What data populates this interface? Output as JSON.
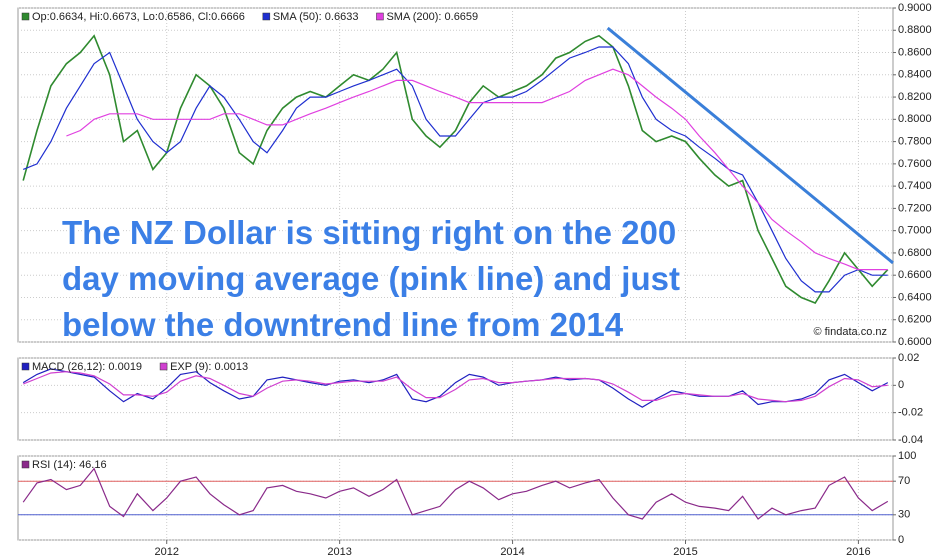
{
  "chart_data": [
    {
      "type": "line",
      "x": [
        2011.17,
        2011.25,
        2011.33,
        2011.42,
        2011.5,
        2011.58,
        2011.67,
        2011.75,
        2011.83,
        2011.92,
        2012.0,
        2012.08,
        2012.17,
        2012.25,
        2012.33,
        2012.42,
        2012.5,
        2012.58,
        2012.67,
        2012.75,
        2012.83,
        2012.92,
        2013.0,
        2013.08,
        2013.17,
        2013.25,
        2013.33,
        2013.42,
        2013.5,
        2013.58,
        2013.67,
        2013.75,
        2013.83,
        2013.92,
        2014.0,
        2014.08,
        2014.17,
        2014.25,
        2014.33,
        2014.42,
        2014.5,
        2014.58,
        2014.67,
        2014.75,
        2014.83,
        2014.92,
        2015.0,
        2015.08,
        2015.17,
        2015.25,
        2015.33,
        2015.42,
        2015.5,
        2015.58,
        2015.67,
        2015.75,
        2015.83,
        2015.92,
        2016.0,
        2016.08,
        2016.17
      ],
      "series": [
        {
          "name": "Op:0.6634, Hi:0.6673, Lo:0.6586, Cl:0.6666",
          "color": "#2f8a2f",
          "values": [
            0.745,
            0.79,
            0.83,
            0.85,
            0.86,
            0.875,
            0.84,
            0.78,
            0.79,
            0.755,
            0.77,
            0.81,
            0.84,
            0.83,
            0.81,
            0.77,
            0.76,
            0.79,
            0.81,
            0.82,
            0.825,
            0.82,
            0.83,
            0.84,
            0.835,
            0.845,
            0.86,
            0.8,
            0.785,
            0.775,
            0.79,
            0.815,
            0.83,
            0.82,
            0.825,
            0.83,
            0.84,
            0.855,
            0.86,
            0.87,
            0.875,
            0.865,
            0.83,
            0.79,
            0.78,
            0.785,
            0.78,
            0.765,
            0.75,
            0.74,
            0.745,
            0.7,
            0.675,
            0.65,
            0.64,
            0.635,
            0.655,
            0.68,
            0.665,
            0.65,
            0.665
          ]
        },
        {
          "name": "SMA (50): 0.6633",
          "color": "#1f2fd0",
          "values": [
            0.755,
            0.76,
            0.78,
            0.81,
            0.83,
            0.85,
            0.86,
            0.83,
            0.8,
            0.78,
            0.77,
            0.78,
            0.81,
            0.83,
            0.82,
            0.8,
            0.78,
            0.77,
            0.79,
            0.81,
            0.82,
            0.82,
            0.825,
            0.83,
            0.835,
            0.84,
            0.845,
            0.83,
            0.8,
            0.785,
            0.785,
            0.8,
            0.815,
            0.82,
            0.82,
            0.825,
            0.835,
            0.845,
            0.855,
            0.86,
            0.865,
            0.865,
            0.85,
            0.82,
            0.8,
            0.79,
            0.785,
            0.775,
            0.765,
            0.755,
            0.75,
            0.725,
            0.7,
            0.675,
            0.655,
            0.645,
            0.645,
            0.66,
            0.665,
            0.66,
            0.66
          ]
        },
        {
          "name": "SMA (200): 0.6659",
          "color": "#e040e0",
          "values": [
            null,
            null,
            null,
            0.785,
            0.79,
            0.8,
            0.805,
            0.805,
            0.805,
            0.8,
            0.8,
            0.8,
            0.8,
            0.8,
            0.805,
            0.805,
            0.8,
            0.795,
            0.795,
            0.8,
            0.805,
            0.81,
            0.815,
            0.82,
            0.825,
            0.83,
            0.835,
            0.835,
            0.83,
            0.825,
            0.82,
            0.815,
            0.815,
            0.815,
            0.815,
            0.815,
            0.815,
            0.82,
            0.825,
            0.835,
            0.84,
            0.845,
            0.84,
            0.83,
            0.82,
            0.81,
            0.8,
            0.785,
            0.77,
            0.755,
            0.74,
            0.725,
            0.71,
            0.7,
            0.69,
            0.68,
            0.675,
            0.67,
            0.665,
            0.665,
            0.665
          ]
        }
      ],
      "trendline": {
        "x": [
          2014.55,
          2016.2
        ],
        "y": [
          0.882,
          0.671
        ],
        "color": "#3a7fd9"
      },
      "annotation": [
        "The NZ Dollar is sitting right on the 200",
        "day moving average (pink line) and just",
        "below the downtrend line from 2014"
      ],
      "watermark": "© findata.co.nz",
      "xlim": [
        2011.14,
        2016.2
      ],
      "xticks": [
        2012,
        2013,
        2014,
        2015,
        2016
      ],
      "ylim": [
        0.6,
        0.9
      ],
      "yticks": [
        {
          "value": 0.9,
          "label": "0.9000"
        },
        {
          "value": 0.88,
          "label": "0.8800"
        },
        {
          "value": 0.86,
          "label": "0.8600"
        },
        {
          "value": 0.84,
          "label": "0.8400"
        },
        {
          "value": 0.82,
          "label": "0.8200"
        },
        {
          "value": 0.8,
          "label": "0.8000"
        },
        {
          "value": 0.78,
          "label": "0.7800"
        },
        {
          "value": 0.76,
          "label": "0.7600"
        },
        {
          "value": 0.74,
          "label": "0.7400"
        },
        {
          "value": 0.72,
          "label": "0.7200"
        },
        {
          "value": 0.7,
          "label": "0.7000"
        },
        {
          "value": 0.68,
          "label": "0.6800"
        },
        {
          "value": 0.66,
          "label": "0.6600"
        },
        {
          "value": 0.64,
          "label": "0.6400"
        },
        {
          "value": 0.62,
          "label": "0.6200"
        },
        {
          "value": 0.6,
          "label": "0.6000"
        }
      ],
      "grid": true
    },
    {
      "type": "line",
      "x": [
        2011.17,
        2011.25,
        2011.33,
        2011.42,
        2011.5,
        2011.58,
        2011.67,
        2011.75,
        2011.83,
        2011.92,
        2012.0,
        2012.08,
        2012.17,
        2012.25,
        2012.33,
        2012.42,
        2012.5,
        2012.58,
        2012.67,
        2012.75,
        2012.83,
        2012.92,
        2013.0,
        2013.08,
        2013.17,
        2013.25,
        2013.33,
        2013.42,
        2013.5,
        2013.58,
        2013.67,
        2013.75,
        2013.83,
        2013.92,
        2014.0,
        2014.08,
        2014.17,
        2014.25,
        2014.33,
        2014.42,
        2014.5,
        2014.58,
        2014.67,
        2014.75,
        2014.83,
        2014.92,
        2015.0,
        2015.08,
        2015.17,
        2015.25,
        2015.33,
        2015.42,
        2015.5,
        2015.58,
        2015.67,
        2015.75,
        2015.83,
        2015.92,
        2016.0,
        2016.08,
        2016.17
      ],
      "series": [
        {
          "name": "MACD (26,12): 0.0019",
          "color": "#2020c0",
          "values": [
            0.002,
            0.008,
            0.012,
            0.01,
            0.008,
            0.006,
            -0.004,
            -0.012,
            -0.006,
            -0.01,
            -0.002,
            0.008,
            0.01,
            0.002,
            -0.004,
            -0.01,
            -0.008,
            0.004,
            0.006,
            0.004,
            0.002,
            0.0,
            0.003,
            0.004,
            0.002,
            0.004,
            0.008,
            -0.01,
            -0.012,
            -0.008,
            0.002,
            0.008,
            0.006,
            0.0,
            0.002,
            0.003,
            0.004,
            0.006,
            0.004,
            0.005,
            0.004,
            -0.002,
            -0.01,
            -0.016,
            -0.01,
            -0.004,
            -0.006,
            -0.008,
            -0.008,
            -0.008,
            -0.004,
            -0.014,
            -0.012,
            -0.012,
            -0.01,
            -0.006,
            0.004,
            0.008,
            0.002,
            -0.004,
            0.002
          ]
        },
        {
          "name": "EXP (9): 0.0013",
          "color": "#d040d0",
          "values": [
            0.001,
            0.005,
            0.009,
            0.01,
            0.009,
            0.007,
            0.001,
            -0.007,
            -0.007,
            -0.008,
            -0.005,
            0.003,
            0.007,
            0.005,
            0.0,
            -0.006,
            -0.008,
            -0.002,
            0.003,
            0.004,
            0.003,
            0.001,
            0.002,
            0.003,
            0.003,
            0.003,
            0.006,
            -0.003,
            -0.009,
            -0.009,
            -0.003,
            0.004,
            0.005,
            0.002,
            0.002,
            0.003,
            0.004,
            0.005,
            0.005,
            0.005,
            0.004,
            0.001,
            -0.005,
            -0.011,
            -0.011,
            -0.007,
            -0.006,
            -0.007,
            -0.008,
            -0.008,
            -0.006,
            -0.01,
            -0.011,
            -0.012,
            -0.011,
            -0.008,
            -0.001,
            0.005,
            0.004,
            -0.001,
            0.0
          ]
        }
      ],
      "xlim": [
        2011.14,
        2016.2
      ],
      "xticks": [
        2012,
        2013,
        2014,
        2015,
        2016
      ],
      "ylim": [
        -0.04,
        0.02
      ],
      "yticks": [
        0.02,
        0,
        -0.02,
        -0.04
      ],
      "grid": true
    },
    {
      "type": "line",
      "x": [
        2011.17,
        2011.25,
        2011.33,
        2011.42,
        2011.5,
        2011.58,
        2011.67,
        2011.75,
        2011.83,
        2011.92,
        2012.0,
        2012.08,
        2012.17,
        2012.25,
        2012.33,
        2012.42,
        2012.5,
        2012.58,
        2012.67,
        2012.75,
        2012.83,
        2012.92,
        2013.0,
        2013.08,
        2013.17,
        2013.25,
        2013.33,
        2013.42,
        2013.5,
        2013.58,
        2013.67,
        2013.75,
        2013.83,
        2013.92,
        2014.0,
        2014.08,
        2014.17,
        2014.25,
        2014.33,
        2014.42,
        2014.5,
        2014.58,
        2014.67,
        2014.75,
        2014.83,
        2014.92,
        2015.0,
        2015.08,
        2015.17,
        2015.25,
        2015.33,
        2015.42,
        2015.5,
        2015.58,
        2015.67,
        2015.75,
        2015.83,
        2015.92,
        2016.0,
        2016.08,
        2016.17
      ],
      "series": [
        {
          "name": "RSI (14): 46.16",
          "color": "#8a2a8a",
          "values": [
            45,
            68,
            72,
            60,
            65,
            85,
            40,
            28,
            55,
            35,
            50,
            70,
            75,
            55,
            42,
            30,
            35,
            62,
            65,
            58,
            55,
            50,
            58,
            62,
            52,
            60,
            72,
            30,
            35,
            40,
            60,
            70,
            62,
            48,
            55,
            58,
            65,
            70,
            62,
            68,
            72,
            50,
            30,
            25,
            45,
            55,
            45,
            40,
            38,
            35,
            52,
            25,
            38,
            30,
            35,
            38,
            65,
            75,
            50,
            35,
            46
          ]
        }
      ],
      "ref_lines": [
        {
          "value": 70,
          "color": "#e06060"
        },
        {
          "value": 30,
          "color": "#5060d0"
        }
      ],
      "xlim": [
        2011.14,
        2016.2
      ],
      "xticks": [
        2012,
        2013,
        2014,
        2015,
        2016
      ],
      "ylim": [
        0,
        100
      ],
      "yticks": [
        100,
        70,
        30,
        0
      ],
      "grid": true
    }
  ]
}
